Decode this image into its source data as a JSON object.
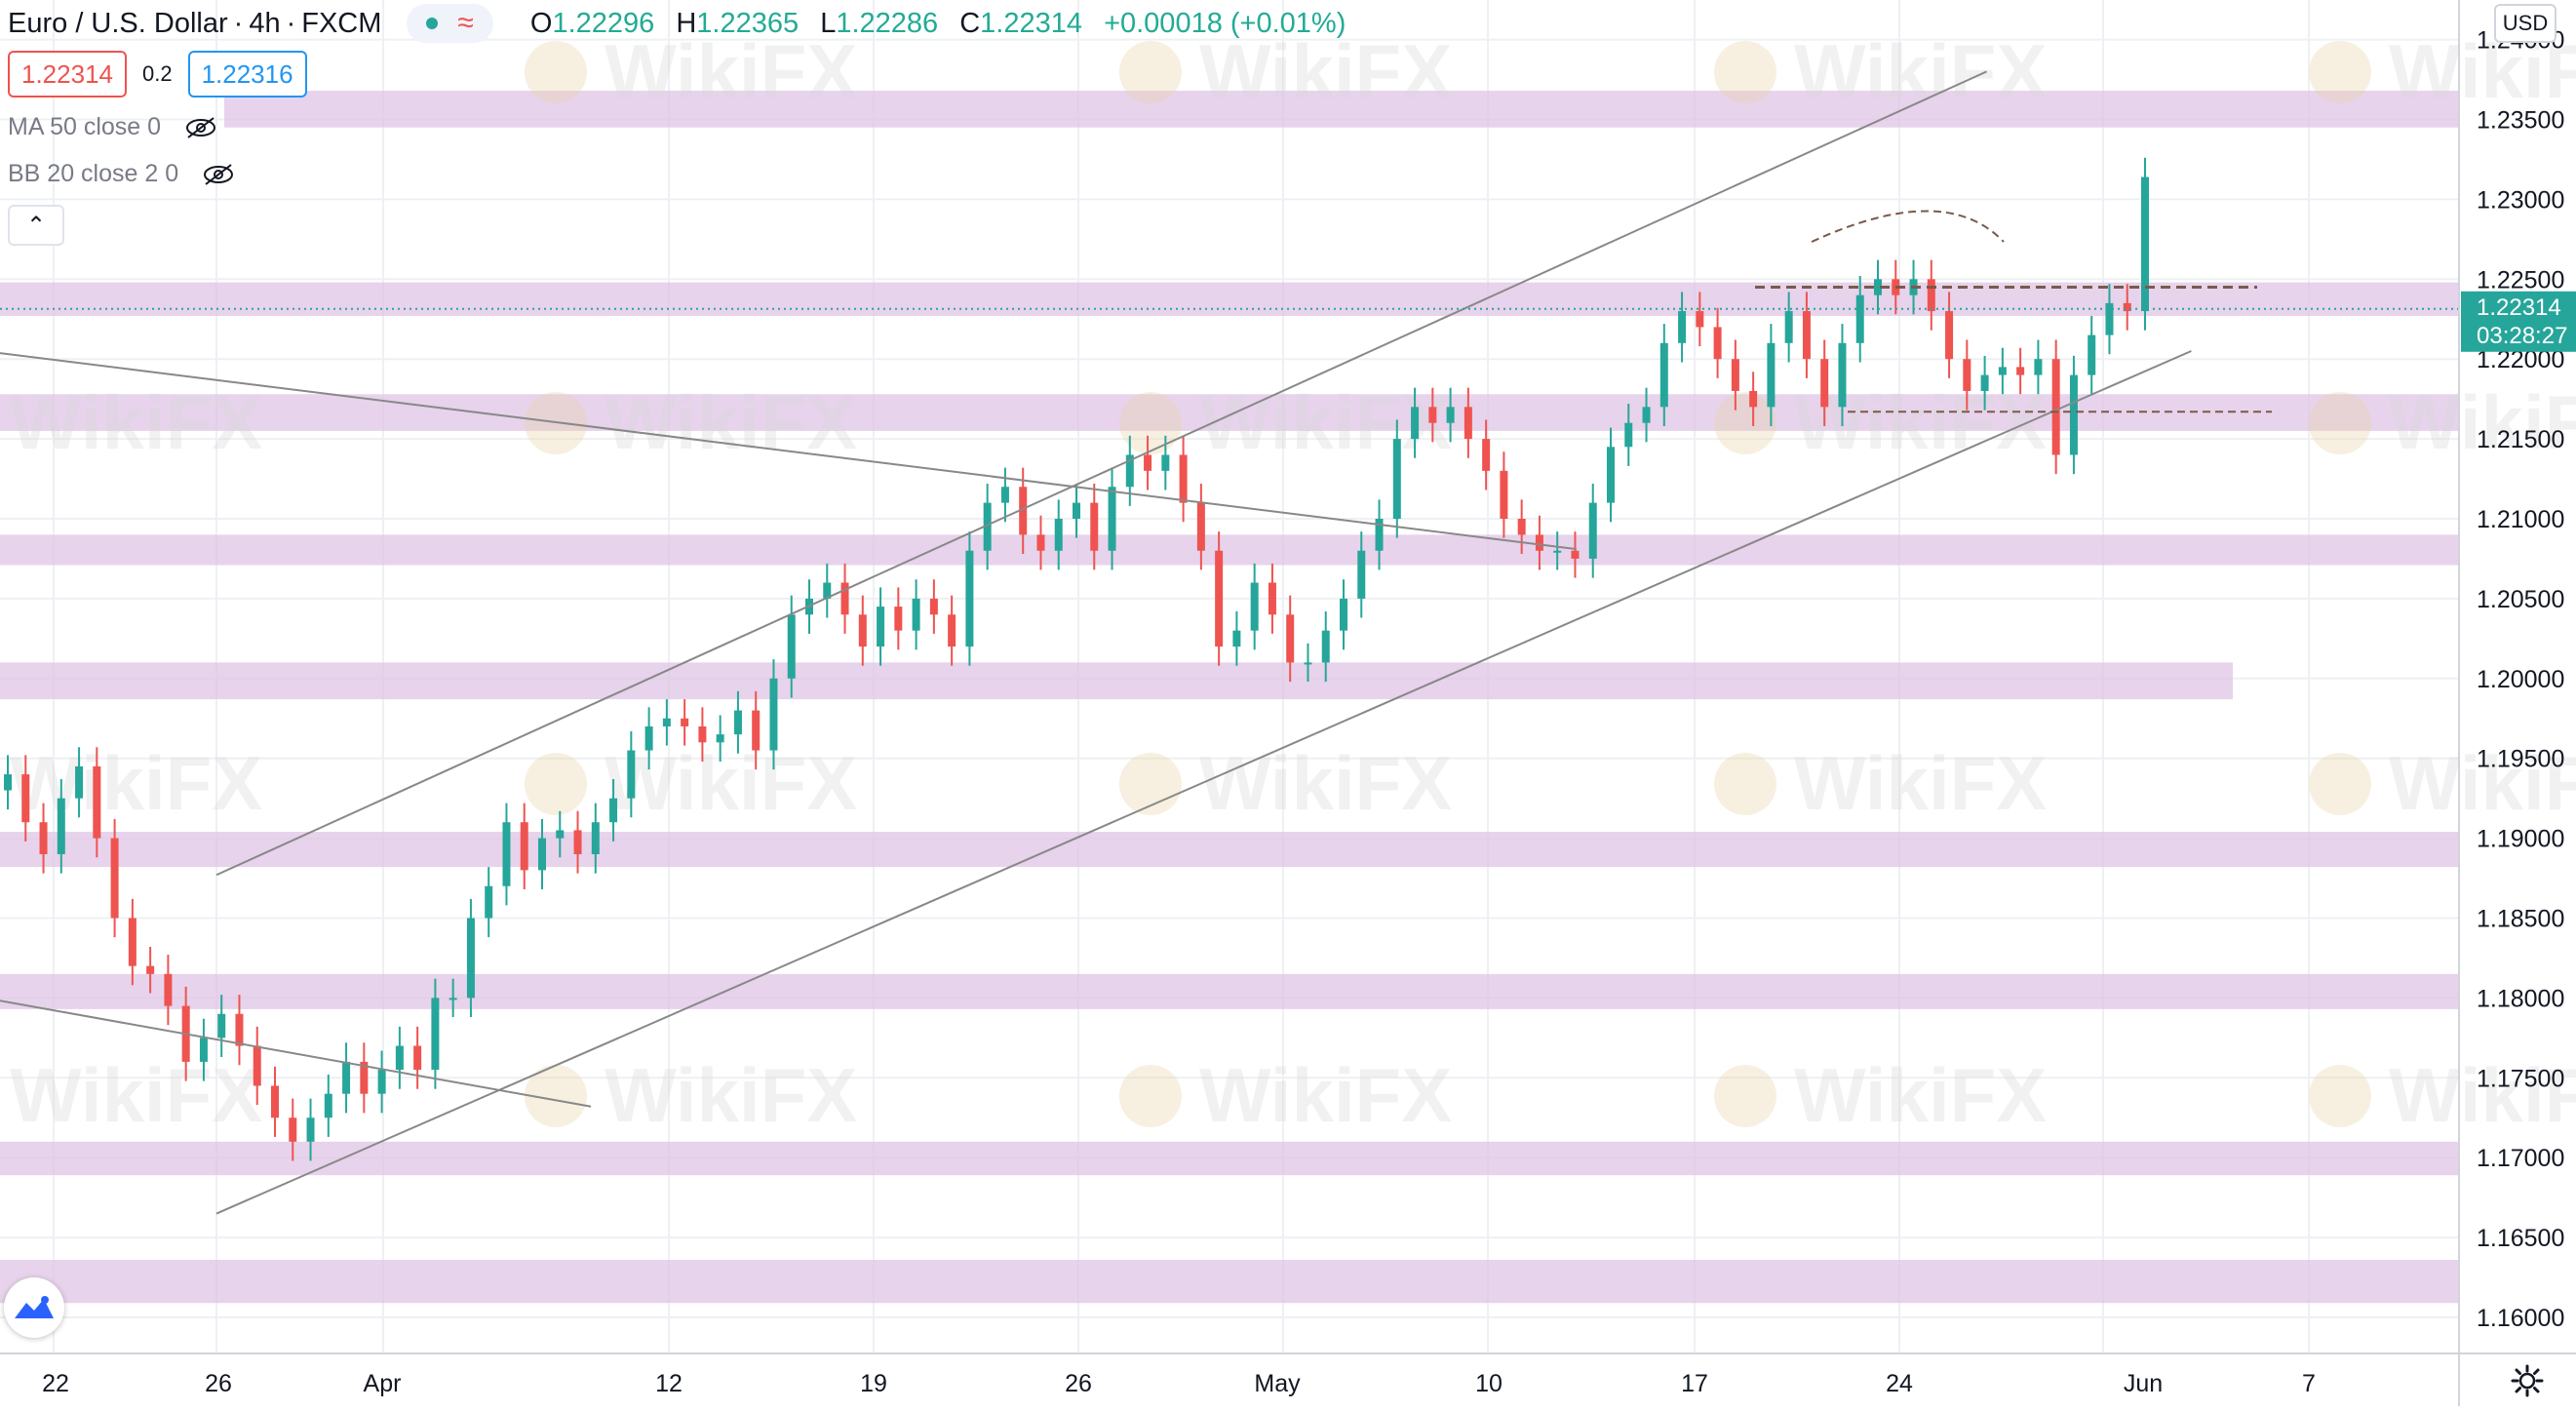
{
  "legend": {
    "symbol": "Euro / U.S. Dollar",
    "interval": "4h",
    "exchange": "FXCM",
    "sep": "·",
    "ohlc": {
      "o_label": "O",
      "o": "1.22296",
      "h_label": "H",
      "h": "1.22365",
      "l_label": "L",
      "l": "1.22286",
      "c_label": "C",
      "c": "1.22314",
      "change": "+0.00018 (+0.01%)"
    }
  },
  "trade": {
    "sell": "1.22314",
    "spread": "0.2",
    "buy": "1.22316"
  },
  "indicators": [
    "MA 50 close 0",
    "BB 20 close 2 0"
  ],
  "currency_button": "USD",
  "price_axis": {
    "labels": [
      "1.24000",
      "1.23500",
      "1.23000",
      "1.22500",
      "1.22000",
      "1.21500",
      "1.21000",
      "1.20500",
      "1.20000",
      "1.19500",
      "1.19000",
      "1.18500",
      "1.18000",
      "1.17500",
      "1.17000",
      "1.16500",
      "1.16000"
    ],
    "current_price": "1.22314",
    "countdown": "03:28:27"
  },
  "time_axis": [
    "22",
    "26",
    "Apr",
    "12",
    "19",
    "26",
    "May",
    "10",
    "17",
    "24",
    "Jun",
    "7"
  ],
  "watermark": "WikiFX",
  "colors": {
    "up": "#26a69a",
    "down": "#ef5350",
    "zone": "#dfc4e4",
    "trendline": "#888888",
    "dashed": "#7a5a4a"
  },
  "chart_data": {
    "type": "candlestick",
    "symbol": "EURUSD",
    "timeframe": "4h",
    "ylim": [
      1.1575,
      1.2415
    ],
    "horizontal_zones": [
      [
        1.2345,
        1.2368
      ],
      [
        1.2227,
        1.2248
      ],
      [
        1.2155,
        1.2178
      ],
      [
        1.2071,
        1.209
      ],
      [
        1.1987,
        1.201
      ],
      [
        1.1882,
        1.1904
      ],
      [
        1.1793,
        1.1815
      ],
      [
        1.1689,
        1.171
      ],
      [
        1.1609,
        1.1636
      ]
    ],
    "dashed_levels": [
      1.2245,
      1.2167
    ],
    "close_series": [
      1.194,
      1.191,
      1.189,
      1.1925,
      1.1945,
      1.19,
      1.185,
      1.182,
      1.1815,
      1.1795,
      1.176,
      1.1775,
      1.179,
      1.177,
      1.1745,
      1.1725,
      1.171,
      1.1725,
      1.174,
      1.176,
      1.174,
      1.1755,
      1.177,
      1.1755,
      1.18,
      1.18,
      1.185,
      1.187,
      1.191,
      1.188,
      1.19,
      1.1905,
      1.189,
      1.191,
      1.1925,
      1.1955,
      1.197,
      1.1975,
      1.197,
      1.196,
      1.1965,
      1.198,
      1.1955,
      1.2,
      1.204,
      1.205,
      1.206,
      1.204,
      1.202,
      1.2045,
      1.203,
      1.205,
      1.204,
      1.202,
      1.208,
      1.211,
      1.212,
      1.209,
      1.208,
      1.21,
      1.211,
      1.208,
      1.212,
      1.214,
      1.213,
      1.214,
      1.211,
      1.208,
      1.202,
      1.203,
      1.206,
      1.204,
      1.201,
      1.201,
      1.203,
      1.205,
      1.208,
      1.21,
      1.215,
      1.217,
      1.216,
      1.217,
      1.215,
      1.213,
      1.21,
      1.209,
      1.208,
      1.208,
      1.2075,
      1.211,
      1.2145,
      1.216,
      1.217,
      1.221,
      1.223,
      1.222,
      1.22,
      1.218,
      1.217,
      1.221,
      1.223,
      1.22,
      1.217,
      1.221,
      1.224,
      1.225,
      1.224,
      1.225,
      1.223,
      1.22,
      1.218,
      1.219,
      1.2195,
      1.219,
      1.22,
      1.214,
      1.219,
      1.2215,
      1.2235,
      1.223,
      1.2314
    ],
    "trendlines": [
      {
        "p1": [
          "Mar 26",
          1.1877
        ],
        "p2": [
          "May 27",
          1.238
        ]
      },
      {
        "p1": [
          "Mar 26",
          1.1665
        ],
        "p2": [
          "Jun 3",
          1.2205
        ]
      },
      {
        "p1": [
          "Mar 19",
          1.2207
        ],
        "p2": [
          "May 13",
          1.2081
        ]
      },
      {
        "p1": [
          "Mar 19",
          1.1803
        ],
        "p2": [
          "Apr 9",
          1.1732
        ]
      }
    ]
  }
}
